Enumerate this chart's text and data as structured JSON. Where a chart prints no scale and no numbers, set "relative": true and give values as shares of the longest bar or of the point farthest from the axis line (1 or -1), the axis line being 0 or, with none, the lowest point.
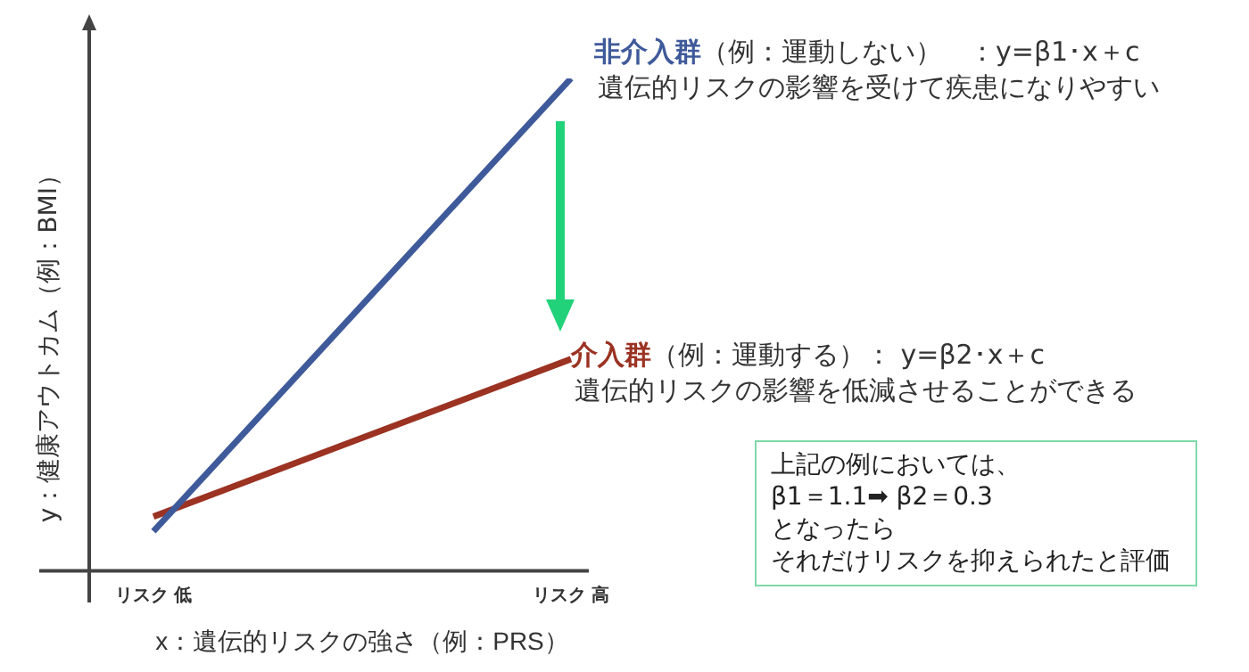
{
  "chart_data": {
    "type": "line",
    "relative": true,
    "xlabel": "x：遺伝的リスクの強さ（例：PRS）",
    "ylabel": "y：健康アウトカム（例：BMI）",
    "categories": [
      "リスク 低",
      "リスク 高"
    ],
    "series": [
      {
        "name": "非介入群",
        "color": "#3f5a9a",
        "values": [
          0.08,
          1
        ]
      },
      {
        "name": "介入群",
        "color": "#9b3222",
        "values": [
          0.11,
          0.43
        ]
      }
    ],
    "annotations": [
      "（例：運動しない）　：y=β1･x＋c",
      "遺伝的リスクの影響を受けて疾患になりやすい",
      "（例：運動する）：  y=β2･x＋c",
      "遺伝的リスクの影響を低減させることができる",
      "上記の例においては、",
      "β1＝1.1➡ β2＝0.3",
      "となったら",
      "それだけリスクを抑えられたと評価"
    ],
    "legend": false,
    "marker": "none",
    "grid": false
  }
}
